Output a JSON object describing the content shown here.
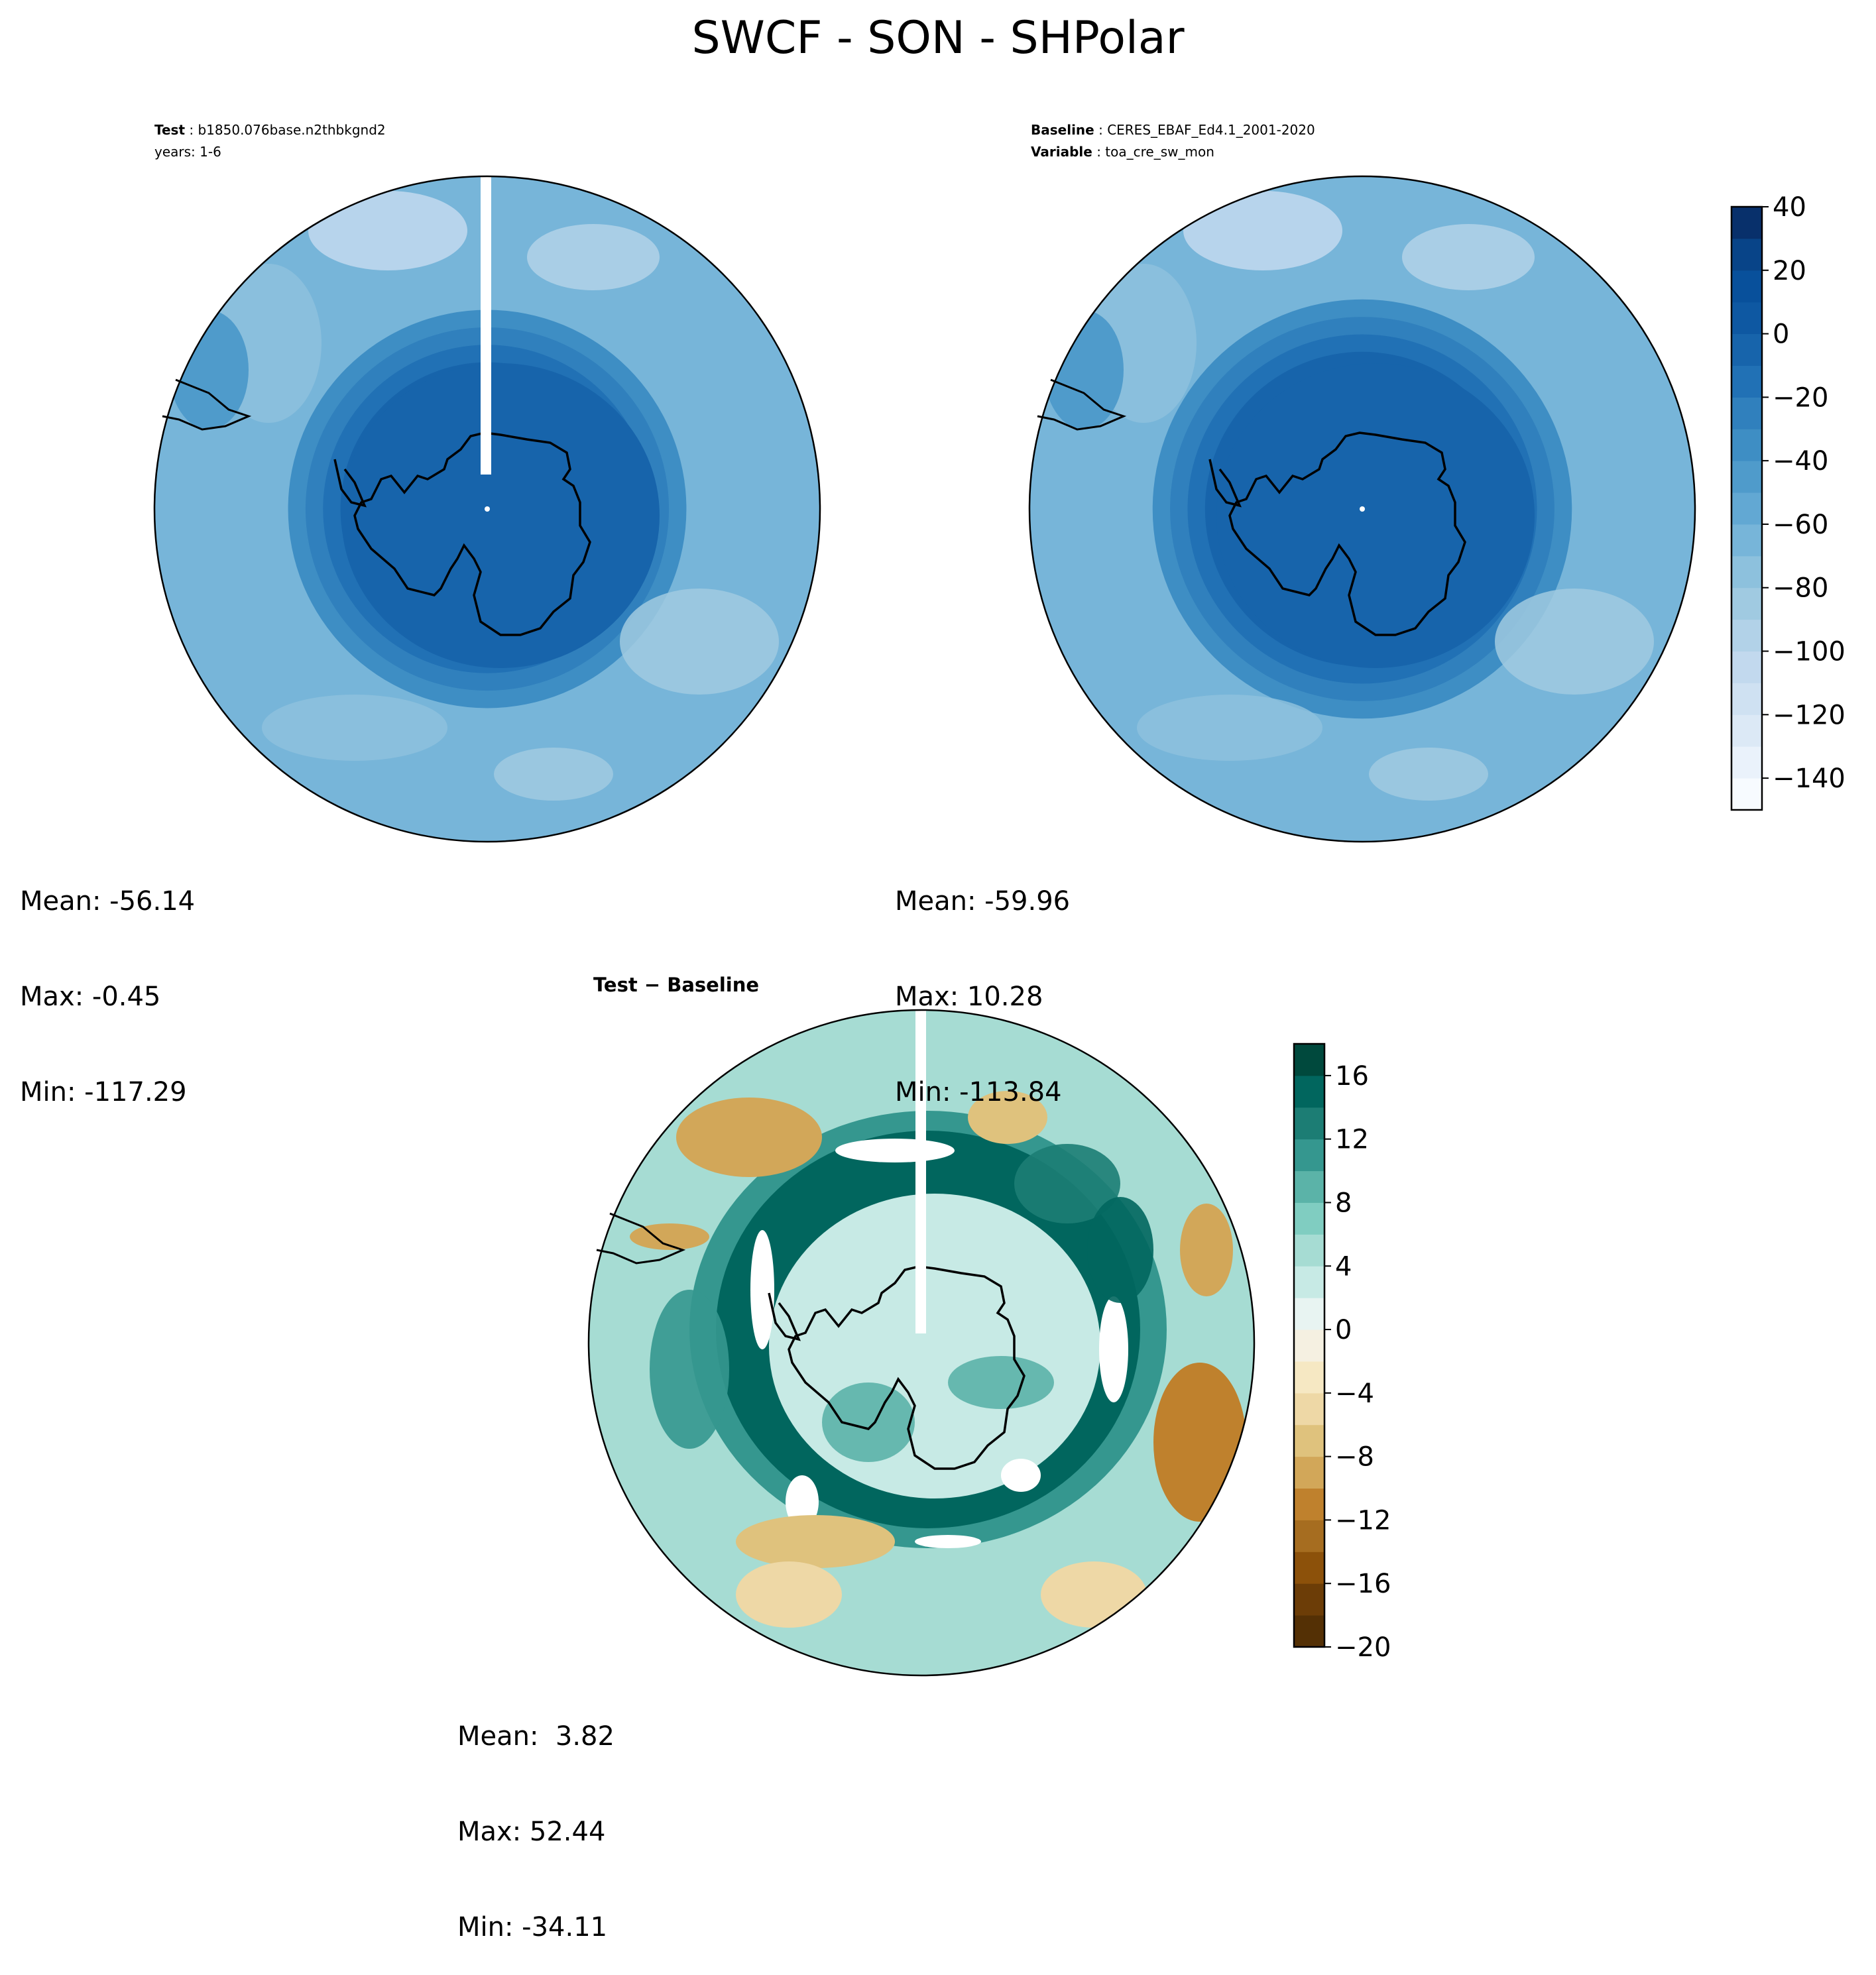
{
  "figure_title": "SWCF - SON - SHPolar",
  "panels": {
    "test": {
      "label": "Test",
      "name": "b1850.076base.n2thbkgnd2",
      "years": "years: 1-6",
      "stats": {
        "mean": "Mean: -56.14",
        "max": "Max: -0.45",
        "min": "Min: -117.29"
      }
    },
    "baseline": {
      "label": "Baseline",
      "name": "CERES_EBAF_Ed4.1_2001-2020",
      "variable_label": "Variable",
      "variable": "toa_cre_sw_mon",
      "stats": {
        "mean": "Mean: -59.96",
        "max": "Max: 10.28",
        "min": "Min: -113.84"
      }
    },
    "diff": {
      "label": "Test − Baseline",
      "stats": {
        "mean": "Mean:  3.82",
        "max": "Max: 52.44",
        "min": "Min: -34.11"
      }
    }
  },
  "chart_data": [
    {
      "type": "heatmap",
      "projection": "south polar stereographic",
      "panel": "test",
      "colormap": "Blues",
      "levels": [
        -150,
        -140,
        -130,
        -120,
        -110,
        -100,
        -90,
        -80,
        -70,
        -60,
        -50,
        -40,
        -30,
        -20,
        -10,
        0,
        10,
        20,
        30,
        40
      ],
      "colorbar_ticks": [
        "40",
        "20",
        "0",
        "−20",
        "−40",
        "−60",
        "−80",
        "−100",
        "−120",
        "−140"
      ],
      "stats": {
        "mean": -56.14,
        "max": -0.45,
        "min": -117.29
      },
      "field_rings": [
        {
          "radius_frac": 0.42,
          "value": -10
        },
        {
          "radius_frac": 0.47,
          "value": -20
        },
        {
          "radius_frac": 0.52,
          "value": -30
        },
        {
          "radius_frac": 0.57,
          "value": -40
        },
        {
          "radius_frac": 1.0,
          "value": -70
        }
      ]
    },
    {
      "type": "heatmap",
      "projection": "south polar stereographic",
      "panel": "baseline",
      "colormap": "Blues",
      "levels": [
        -150,
        -140,
        -130,
        -120,
        -110,
        -100,
        -90,
        -80,
        -70,
        -60,
        -50,
        -40,
        -30,
        -20,
        -10,
        0,
        10,
        20,
        30,
        40
      ],
      "colorbar_ticks": [
        "40",
        "20",
        "0",
        "−20",
        "−40",
        "−60",
        "−80",
        "−100",
        "−120",
        "−140"
      ],
      "stats": {
        "mean": -59.96,
        "max": 10.28,
        "min": -113.84
      },
      "field_rings": [
        {
          "radius_frac": 0.45,
          "value": -10
        },
        {
          "radius_frac": 0.5,
          "value": -20
        },
        {
          "radius_frac": 0.55,
          "value": -30
        },
        {
          "radius_frac": 0.6,
          "value": -40
        },
        {
          "radius_frac": 1.0,
          "value": -70
        }
      ]
    },
    {
      "type": "heatmap",
      "projection": "south polar stereographic",
      "panel": "diff",
      "colormap": "BrBG",
      "levels": [
        -20,
        -18,
        -16,
        -14,
        -12,
        -10,
        -8,
        -6,
        -4,
        -2,
        0,
        2,
        4,
        6,
        8,
        10,
        12,
        14,
        16,
        18
      ],
      "colorbar_ticks": [
        "16",
        "12",
        "8",
        "4",
        "0",
        "−4",
        "−8",
        "−12",
        "−16",
        "−20"
      ],
      "stats": {
        "mean": 3.82,
        "max": 52.44,
        "min": -34.11
      },
      "features": [
        {
          "name": "positive ring around Antarctica",
          "value": 14
        },
        {
          "name": "inner continent",
          "value": 3
        },
        {
          "name": "outer ocean",
          "value": 4
        },
        {
          "name": "negative patch east",
          "value": -12
        },
        {
          "name": "negative patch north-west",
          "value": -10
        },
        {
          "name": "negative band south",
          "value": -8
        }
      ]
    }
  ],
  "colors": {
    "blues": [
      "#f7fbff",
      "#eaf2fb",
      "#dce9f6",
      "#cfe1f2",
      "#c2d9ee",
      "#b2d2e8",
      "#a0cae1",
      "#8dc1dd",
      "#77b5d9",
      "#62a8d3",
      "#4f9bcb",
      "#3e8ec4",
      "#3080bd",
      "#2171b5",
      "#1764ab",
      "#0e58a2",
      "#08509b",
      "#084488",
      "#08306b"
    ],
    "brbg": [
      "#543005",
      "#6c3d07",
      "#8c510a",
      "#a66d20",
      "#bf812d",
      "#d2a759",
      "#dfc27d",
      "#eed8a6",
      "#f6e8c3",
      "#f5f0e1",
      "#e8f4f2",
      "#c7eae5",
      "#a6dcd3",
      "#80cdc1",
      "#5bb3a8",
      "#35978f",
      "#1c7d74",
      "#01665e",
      "#00493d"
    ]
  },
  "icons": {
    "coastline": "antarctica-coastline-icon"
  }
}
